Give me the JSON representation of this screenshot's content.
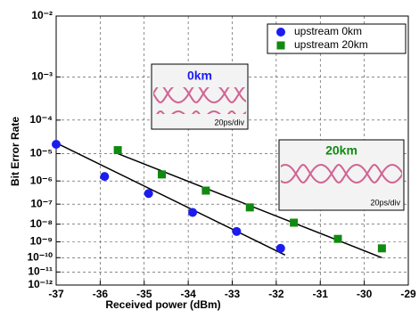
{
  "chart_data": {
    "type": "scatter",
    "x_label": "Received power (dBm)",
    "y_label": "Bit Error Rate",
    "y_scale": "ber",
    "xlim": [
      -37,
      -29
    ],
    "xticks": [
      -37,
      -36,
      -35,
      -34,
      -33,
      -32,
      -31,
      -30,
      -29
    ],
    "ylim": [
      1e-12,
      0.01
    ],
    "yticks": [
      {
        "value": 0.01,
        "label": "10⁻²"
      },
      {
        "value": 0.001,
        "label": "10⁻³"
      },
      {
        "value": 0.0001,
        "label": "10⁻⁴"
      },
      {
        "value": 1e-05,
        "label": "10⁻⁵"
      },
      {
        "value": 1e-06,
        "label": "10⁻⁶"
      },
      {
        "value": 1e-07,
        "label": "10⁻⁷"
      },
      {
        "value": 1e-08,
        "label": "10⁻⁸"
      },
      {
        "value": 1e-09,
        "label": "10⁻⁹"
      },
      {
        "value": 1e-10,
        "label": "10⁻¹⁰"
      },
      {
        "value": 1e-11,
        "label": "10⁻¹¹"
      },
      {
        "value": 1e-12,
        "label": "10⁻¹²"
      }
    ],
    "grid": true,
    "legend": "upper right",
    "series": [
      {
        "name": "upstream 0km",
        "color": "#1c1cf0",
        "marker": "circle",
        "x": [
          -37,
          -35.9,
          -34.9,
          -33.9,
          -32.9,
          -31.9
        ],
        "values": [
          2e-05,
          1.5e-06,
          3e-07,
          4e-08,
          4e-09,
          4e-10
        ]
      },
      {
        "name": "upstream 20km",
        "color": "#108a10",
        "marker": "square",
        "x": [
          -35.6,
          -34.6,
          -33.6,
          -32.6,
          -31.6,
          -30.6,
          -29.6
        ],
        "values": [
          1.3e-05,
          1.8e-06,
          4e-07,
          7e-08,
          1.2e-08,
          1.5e-09,
          4e-10
        ]
      }
    ],
    "fit_lines": [
      {
        "x": [
          -37,
          -31.8
        ],
        "values": [
          2.2e-05,
          1.5e-10
        ]
      },
      {
        "x": [
          -35.6,
          -29.6
        ],
        "values": [
          1e-05,
          1e-10
        ]
      }
    ],
    "insets": [
      {
        "label": "0km",
        "scale": "20ps/div"
      },
      {
        "label": "20km",
        "scale": "20ps/div"
      }
    ]
  }
}
